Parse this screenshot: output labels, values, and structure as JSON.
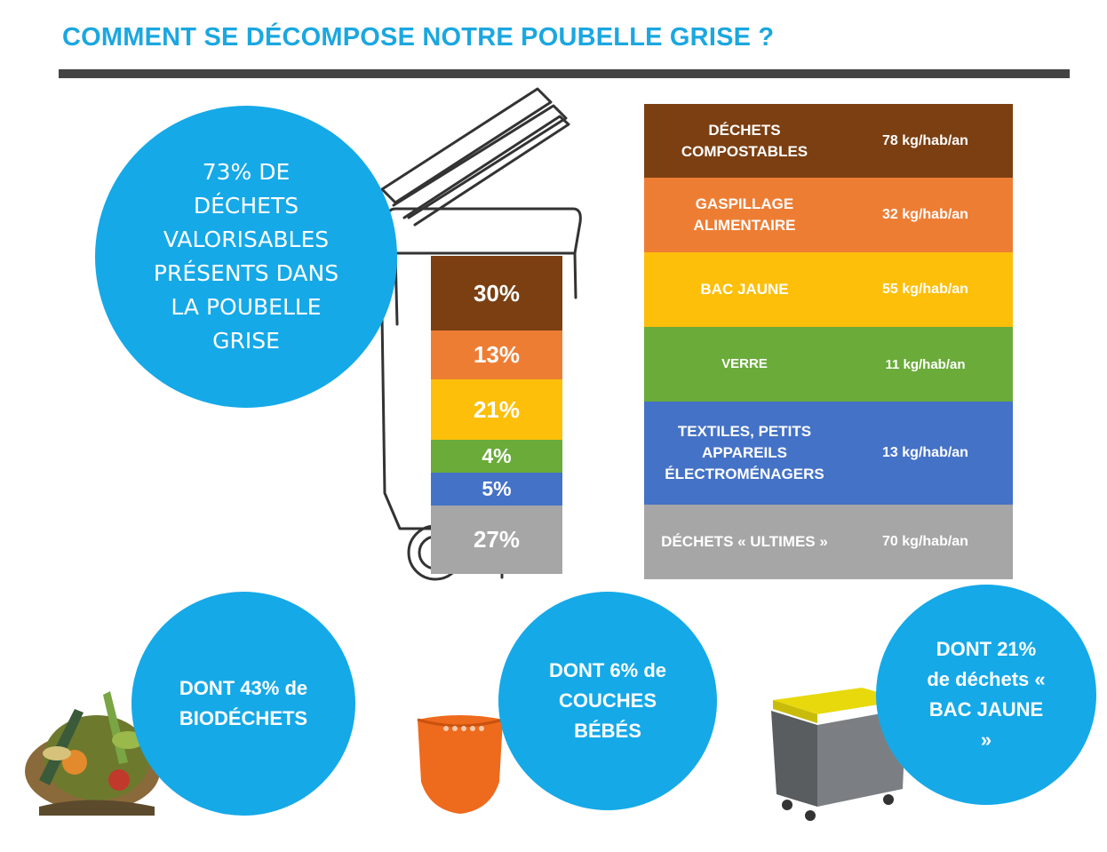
{
  "title": "COMMENT SE DÉCOMPOSE NOTRE POUBELLE GRISE ?",
  "headline_circle": "73% DE DÉCHETS VALORISABLES PRÉSENTS DANS LA POUBELLE GRISE",
  "bin_segments": [
    {
      "label": "30%",
      "color": "#7b3f12"
    },
    {
      "label": "13%",
      "color": "#ee7d34"
    },
    {
      "label": "21%",
      "color": "#fdbf0a"
    },
    {
      "label": "4%",
      "color": "#6aab3a"
    },
    {
      "label": "5%",
      "color": "#4472c6"
    },
    {
      "label": "27%",
      "color": "#a6a6a6"
    }
  ],
  "table": [
    {
      "label": "DÉCHETS COMPOSTABLES",
      "value": "78 kg/hab/an",
      "color": "#7b3f12"
    },
    {
      "label": "GASPILLAGE ALIMENTAIRE",
      "value": "32 kg/hab/an",
      "color": "#ee7d34"
    },
    {
      "label": "BAC JAUNE",
      "value": "55 kg/hab/an",
      "color": "#fdbf0a"
    },
    {
      "label": "VERRE",
      "value": "11 kg/hab/an",
      "color": "#6aab3a"
    },
    {
      "label": "TEXTILES, PETITS APPAREILS ÉLECTROMÉNAGERS",
      "value": "13 kg/hab/an",
      "color": "#4472c6"
    },
    {
      "label": "DÉCHETS « ULTIMES »",
      "value": "70 kg/hab/an",
      "color": "#a6a6a6"
    }
  ],
  "bottom_circles": {
    "biodechets": "DONT 43% de BIODÉCHETS",
    "couches": "DONT 6% de COUCHES BÉBÉS",
    "bac_jaune": "DONT 21% de déchets « BAC JAUNE »"
  },
  "colors": {
    "accent": "#1ba7e0",
    "circle": "#15a9e8",
    "rule": "#444444"
  }
}
